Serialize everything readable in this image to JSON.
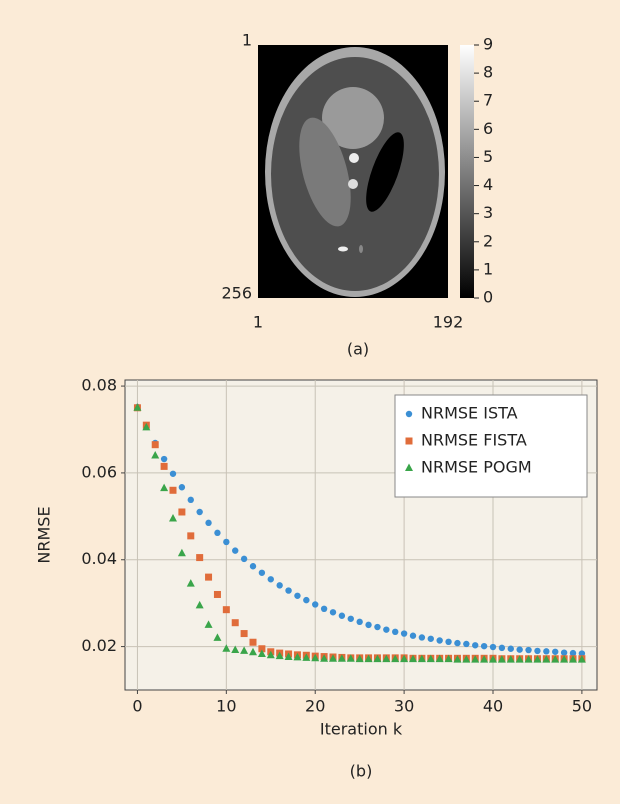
{
  "chart_data": [
    {
      "type": "image",
      "caption": "(a)",
      "xlim": [
        1,
        192
      ],
      "xticks": [
        1,
        192
      ],
      "ylim": [
        1,
        256
      ],
      "yticks": [
        1,
        256
      ],
      "colorbar": {
        "lim": [
          0,
          9
        ],
        "ticks": [
          0,
          1,
          2,
          3,
          4,
          5,
          6,
          7,
          8,
          9
        ]
      }
    },
    {
      "type": "scatter",
      "caption": "(b)",
      "xlabel": "Iteration k",
      "ylabel": "NRMSE",
      "xlim": [
        -1.4,
        51.7
      ],
      "xticks": [
        0,
        10,
        20,
        30,
        40,
        50
      ],
      "ylim": [
        0.01,
        0.0814
      ],
      "yticks": [
        0.02,
        0.04,
        0.06,
        0.08
      ],
      "grid": true,
      "legend": "upper right",
      "x": [
        0,
        1,
        2,
        3,
        4,
        5,
        6,
        7,
        8,
        9,
        10,
        11,
        12,
        13,
        14,
        15,
        16,
        17,
        18,
        19,
        20,
        21,
        22,
        23,
        24,
        25,
        26,
        27,
        28,
        29,
        30,
        31,
        32,
        33,
        34,
        35,
        36,
        37,
        38,
        39,
        40,
        41,
        42,
        43,
        44,
        45,
        46,
        47,
        48,
        49,
        50
      ],
      "series": [
        {
          "name": "NRMSE ISTA",
          "color": "#3b8fd4",
          "marker": "circle",
          "values": [
            0.0752,
            0.0709,
            0.0669,
            0.0632,
            0.0598,
            0.0567,
            0.0538,
            0.051,
            0.0485,
            0.0462,
            0.0441,
            0.0421,
            0.0402,
            0.0385,
            0.037,
            0.0355,
            0.0341,
            0.0329,
            0.0317,
            0.0307,
            0.0297,
            0.0287,
            0.0279,
            0.0271,
            0.0264,
            0.0257,
            0.025,
            0.0245,
            0.0239,
            0.0234,
            0.023,
            0.0225,
            0.0221,
            0.0218,
            0.0214,
            0.0211,
            0.0208,
            0.0206,
            0.0203,
            0.0201,
            0.0199,
            0.0197,
            0.0195,
            0.0193,
            0.0192,
            0.019,
            0.0189,
            0.0188,
            0.0186,
            0.0185,
            0.0184
          ]
        },
        {
          "name": "NRMSE FISTA",
          "color": "#e06c3a",
          "marker": "square",
          "values": [
            0.075,
            0.071,
            0.0665,
            0.0615,
            0.056,
            0.051,
            0.0455,
            0.0405,
            0.036,
            0.032,
            0.0285,
            0.0255,
            0.023,
            0.021,
            0.0195,
            0.0188,
            0.0185,
            0.0183,
            0.0181,
            0.018,
            0.0178,
            0.0177,
            0.0176,
            0.0175,
            0.0174,
            0.0174,
            0.0174,
            0.0174,
            0.0174,
            0.0174,
            0.0174,
            0.0173,
            0.0173,
            0.0173,
            0.0173,
            0.0173,
            0.0173,
            0.0173,
            0.0173,
            0.0173,
            0.0173,
            0.0172,
            0.0172,
            0.0172,
            0.0172,
            0.0172,
            0.0172,
            0.0172,
            0.0172,
            0.0172,
            0.0172
          ]
        },
        {
          "name": "NRMSE POGM",
          "color": "#3aa54a",
          "marker": "triangle",
          "values": [
            0.075,
            0.0705,
            0.064,
            0.0565,
            0.0495,
            0.0415,
            0.0345,
            0.0295,
            0.025,
            0.022,
            0.0195,
            0.0192,
            0.019,
            0.0187,
            0.0183,
            0.018,
            0.0178,
            0.0176,
            0.0175,
            0.0174,
            0.0173,
            0.0172,
            0.0172,
            0.0172,
            0.0172,
            0.0171,
            0.0171,
            0.0171,
            0.0171,
            0.0171,
            0.0171,
            0.0171,
            0.0171,
            0.0171,
            0.0171,
            0.0171,
            0.017,
            0.017,
            0.017,
            0.017,
            0.017,
            0.017,
            0.017,
            0.017,
            0.017,
            0.017,
            0.017,
            0.017,
            0.017,
            0.017,
            0.017
          ]
        }
      ]
    }
  ]
}
